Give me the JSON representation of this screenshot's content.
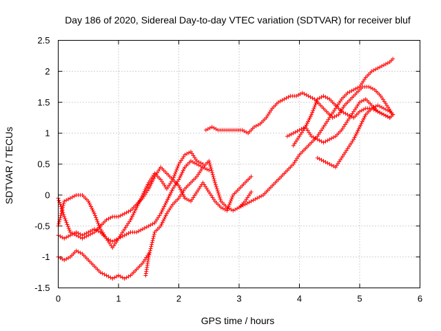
{
  "chart_data": {
    "type": "scatter",
    "title": "Day 186 of 2020, Sidereal Day-to-day VTEC variation (SDTVAR) for receiver bluf",
    "xlabel": "GPS time / hours",
    "ylabel": "SDTVAR / TECUs",
    "xlim": [
      0,
      6
    ],
    "ylim": [
      -1.5,
      2.5
    ],
    "x_ticks": [
      0,
      1,
      2,
      3,
      4,
      5,
      6
    ],
    "y_ticks": [
      -1.5,
      -1,
      -0.5,
      0,
      0.5,
      1,
      1.5,
      2,
      2.5
    ],
    "x_tick_labels": [
      "0",
      "1",
      "2",
      "3",
      "4",
      "5",
      "6"
    ],
    "y_tick_labels": [
      "-1.5",
      "-1",
      "-0.5",
      "0",
      "0.5",
      "1",
      "1.5",
      "2",
      "2.5"
    ],
    "grid": true,
    "marker": "+",
    "color": "#ff0000",
    "series": [
      {
        "x": [
          0.0,
          0.1,
          0.2,
          0.3,
          0.4,
          0.5,
          0.6,
          0.7,
          0.8,
          0.9,
          1.0,
          1.1,
          1.2,
          1.3,
          1.4,
          1.5
        ],
        "y": [
          -1.0,
          -1.05,
          -1.0,
          -0.9,
          -0.95,
          -1.05,
          -1.15,
          -1.25,
          -1.3,
          -1.35,
          -1.3,
          -1.35,
          -1.3,
          -1.2,
          -1.1,
          -0.95
        ]
      },
      {
        "x": [
          1.45,
          1.5,
          1.55,
          1.6,
          1.7,
          1.8,
          1.9,
          2.0,
          2.1,
          2.2,
          2.3,
          2.4,
          2.5,
          2.6,
          2.7,
          2.8,
          2.9,
          3.0,
          3.1,
          3.2
        ],
        "y": [
          -1.3,
          -1.0,
          -0.8,
          -0.6,
          -0.5,
          -0.3,
          -0.15,
          -0.05,
          0.1,
          0.2,
          0.3,
          0.45,
          0.55,
          0.2,
          -0.1,
          -0.2,
          -0.25,
          -0.2,
          -0.1,
          0.05
        ]
      },
      {
        "x": [
          0.0,
          0.1,
          0.2,
          0.3,
          0.4,
          0.5,
          0.6,
          0.7,
          0.8,
          0.9,
          1.0,
          1.1,
          1.2,
          1.3,
          1.4,
          1.5,
          1.6,
          1.7,
          1.8,
          1.9,
          2.0,
          2.1,
          2.2,
          2.3,
          2.4,
          2.5,
          2.6,
          2.7,
          2.8,
          2.9,
          3.0,
          3.1,
          3.2
        ],
        "y": [
          -0.05,
          -0.35,
          -0.6,
          -0.65,
          -0.7,
          -0.65,
          -0.6,
          -0.5,
          -0.4,
          -0.35,
          -0.35,
          -0.3,
          -0.25,
          -0.15,
          -0.05,
          0.1,
          0.3,
          0.45,
          0.35,
          0.25,
          0.15,
          -0.05,
          -0.1,
          0.05,
          0.2,
          0.05,
          -0.1,
          -0.2,
          -0.25,
          0.0,
          0.1,
          0.2,
          0.3
        ]
      },
      {
        "x": [
          0.0,
          0.1,
          0.2,
          0.3,
          0.4,
          0.5,
          0.6,
          0.7,
          0.8,
          0.9,
          1.0,
          1.1,
          1.2,
          1.3,
          1.4,
          1.5,
          1.6,
          1.7,
          1.8,
          1.9,
          2.0,
          2.1,
          2.2,
          2.3,
          2.4,
          2.5
        ],
        "y": [
          -0.65,
          -0.7,
          -0.65,
          -0.6,
          -0.65,
          -0.6,
          -0.55,
          -0.6,
          -0.7,
          -0.75,
          -0.7,
          -0.65,
          -0.6,
          -0.6,
          -0.55,
          -0.5,
          -0.45,
          -0.3,
          -0.1,
          0.1,
          0.25,
          0.45,
          0.55,
          0.5,
          0.45,
          0.4
        ]
      },
      {
        "x": [
          0.0,
          0.1,
          0.2,
          0.3,
          0.4,
          0.5,
          0.6,
          0.7,
          0.8,
          0.9,
          1.0,
          1.1,
          1.2,
          1.3,
          1.4,
          1.5,
          1.6,
          1.7,
          1.8,
          1.9,
          2.0,
          2.1,
          2.2,
          2.3,
          2.4
        ],
        "y": [
          -0.5,
          -0.1,
          -0.05,
          0.0,
          0.0,
          -0.1,
          -0.3,
          -0.55,
          -0.7,
          -0.85,
          -0.7,
          -0.55,
          -0.4,
          -0.2,
          0.0,
          0.2,
          0.35,
          0.25,
          0.1,
          0.25,
          0.5,
          0.65,
          0.7,
          0.55,
          0.5
        ]
      },
      {
        "x": [
          2.45,
          2.55,
          2.65,
          2.75,
          2.85,
          2.95,
          3.05,
          3.15,
          3.25,
          3.35,
          3.45,
          3.55,
          3.65,
          3.75,
          3.85,
          3.95,
          4.05,
          4.15,
          4.25,
          4.35,
          4.45,
          4.55,
          4.65,
          4.75,
          4.85,
          4.95,
          5.05,
          5.15,
          5.25,
          5.35,
          5.45,
          5.55
        ],
        "y": [
          1.05,
          1.1,
          1.05,
          1.05,
          1.05,
          1.05,
          1.05,
          1.0,
          1.1,
          1.15,
          1.25,
          1.4,
          1.5,
          1.55,
          1.6,
          1.6,
          1.65,
          1.6,
          1.55,
          1.45,
          1.35,
          1.25,
          1.3,
          1.45,
          1.55,
          1.65,
          1.75,
          1.75,
          1.7,
          1.6,
          1.45,
          1.3
        ]
      },
      {
        "x": [
          3.0,
          3.1,
          3.2,
          3.3,
          3.4,
          3.5,
          3.6,
          3.7,
          3.8,
          3.9,
          4.0,
          4.1,
          4.2,
          4.3,
          4.4,
          4.5,
          4.6,
          4.7,
          4.8,
          4.9,
          5.0,
          5.1,
          5.2,
          5.3,
          5.4,
          5.5,
          5.55
        ],
        "y": [
          -0.2,
          -0.15,
          -0.1,
          -0.05,
          0.0,
          0.1,
          0.2,
          0.3,
          0.4,
          0.5,
          0.65,
          0.75,
          0.85,
          0.95,
          1.1,
          1.25,
          1.4,
          1.55,
          1.65,
          1.7,
          1.75,
          1.9,
          2.0,
          2.05,
          2.1,
          2.15,
          2.2
        ]
      },
      {
        "x": [
          3.8,
          3.9,
          4.0,
          4.1,
          4.2,
          4.3,
          4.4,
          4.5,
          4.6,
          4.7,
          4.8,
          4.9,
          5.0,
          5.1,
          5.2,
          5.3,
          5.4,
          5.5,
          5.55
        ],
        "y": [
          0.95,
          1.0,
          1.05,
          1.1,
          0.95,
          0.9,
          0.85,
          0.9,
          0.95,
          1.05,
          1.2,
          1.35,
          1.5,
          1.55,
          1.45,
          1.35,
          1.3,
          1.25,
          1.3
        ]
      },
      {
        "x": [
          3.9,
          4.0,
          4.1,
          4.2,
          4.3,
          4.4,
          4.5,
          4.6,
          4.7,
          4.8,
          4.9,
          5.0,
          5.1,
          5.2,
          5.3,
          5.4,
          5.5
        ],
        "y": [
          0.8,
          0.95,
          1.1,
          1.3,
          1.55,
          1.6,
          1.55,
          1.45,
          1.35,
          1.3,
          1.25,
          1.35,
          1.4,
          1.4,
          1.35,
          1.3,
          1.25
        ]
      },
      {
        "x": [
          4.3,
          4.4,
          4.5,
          4.6,
          4.7,
          4.8,
          4.9,
          5.0,
          5.1,
          5.2,
          5.3,
          5.4,
          5.5,
          5.55
        ],
        "y": [
          0.6,
          0.55,
          0.5,
          0.45,
          0.6,
          0.75,
          0.9,
          1.1,
          1.3,
          1.4,
          1.45,
          1.4,
          1.35,
          1.3
        ]
      }
    ]
  }
}
